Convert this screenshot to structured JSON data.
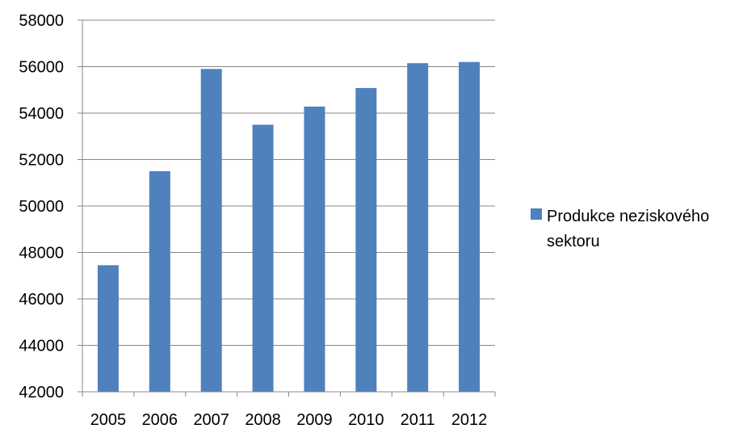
{
  "chart_data": {
    "type": "bar",
    "categories": [
      "2005",
      "2006",
      "2007",
      "2008",
      "2009",
      "2010",
      "2011",
      "2012"
    ],
    "series": [
      {
        "name": "Produkce neziskového sektoru",
        "values": [
          47450,
          51500,
          55900,
          53500,
          54280,
          55080,
          56150,
          56200
        ],
        "color": "#4f81bd"
      }
    ],
    "ylim": [
      42000,
      58000
    ],
    "yticks": [
      42000,
      44000,
      46000,
      48000,
      50000,
      52000,
      54000,
      56000,
      58000
    ],
    "grid": true,
    "legend_position": "right",
    "legend_lines": [
      "Produkce neziskového",
      "sektoru"
    ],
    "colors": {
      "gridline": "#878787",
      "axis": "#878787"
    }
  }
}
